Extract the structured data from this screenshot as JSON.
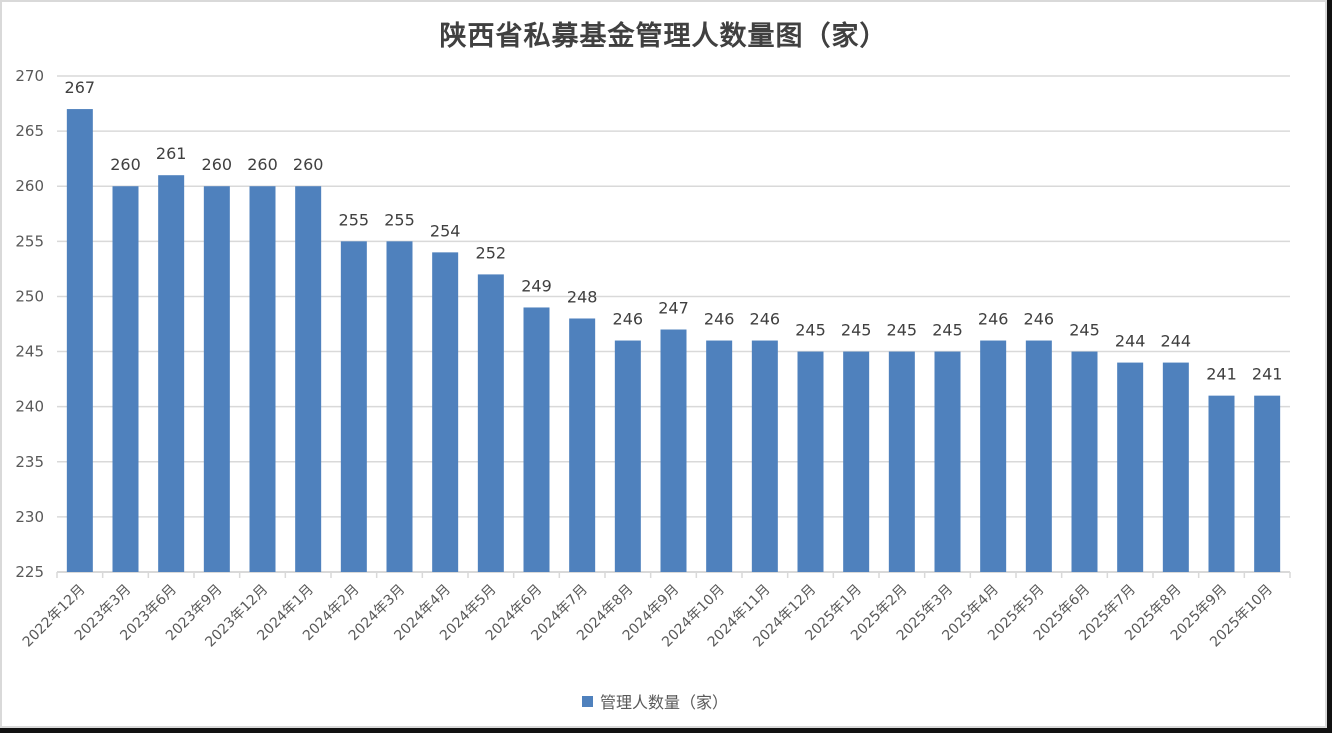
{
  "chart_data": {
    "type": "bar",
    "title": "陕西省私募基金管理人数量图（家）",
    "xlabel": "",
    "ylabel": "",
    "ylim": [
      225,
      270
    ],
    "yticks": [
      225,
      230,
      235,
      240,
      245,
      250,
      255,
      260,
      265,
      270
    ],
    "grid": true,
    "legend_position": "bottom",
    "bar_color": "#4f81bd",
    "categories": [
      "2022年12月",
      "2023年3月",
      "2023年6月",
      "2023年9月",
      "2023年12月",
      "2024年1月",
      "2024年2月",
      "2024年3月",
      "2024年4月",
      "2024年5月",
      "2024年6月",
      "2024年7月",
      "2024年8月",
      "2024年9月",
      "2024年10月",
      "2024年11月",
      "2024年12月",
      "2025年1月",
      "2025年2月",
      "2025年3月",
      "2025年4月",
      "2025年5月",
      "2025年6月",
      "2025年7月",
      "2025年8月",
      "2025年9月",
      "2025年10月"
    ],
    "series": [
      {
        "name": "管理人数量（家）",
        "values": [
          267,
          260,
          261,
          260,
          260,
          260,
          255,
          255,
          254,
          252,
          249,
          248,
          246,
          247,
          246,
          246,
          245,
          245,
          245,
          245,
          246,
          246,
          245,
          244,
          244,
          241,
          241
        ]
      }
    ]
  },
  "legend": {
    "label": "管理人数量（家）",
    "color": "#4f81bd"
  }
}
